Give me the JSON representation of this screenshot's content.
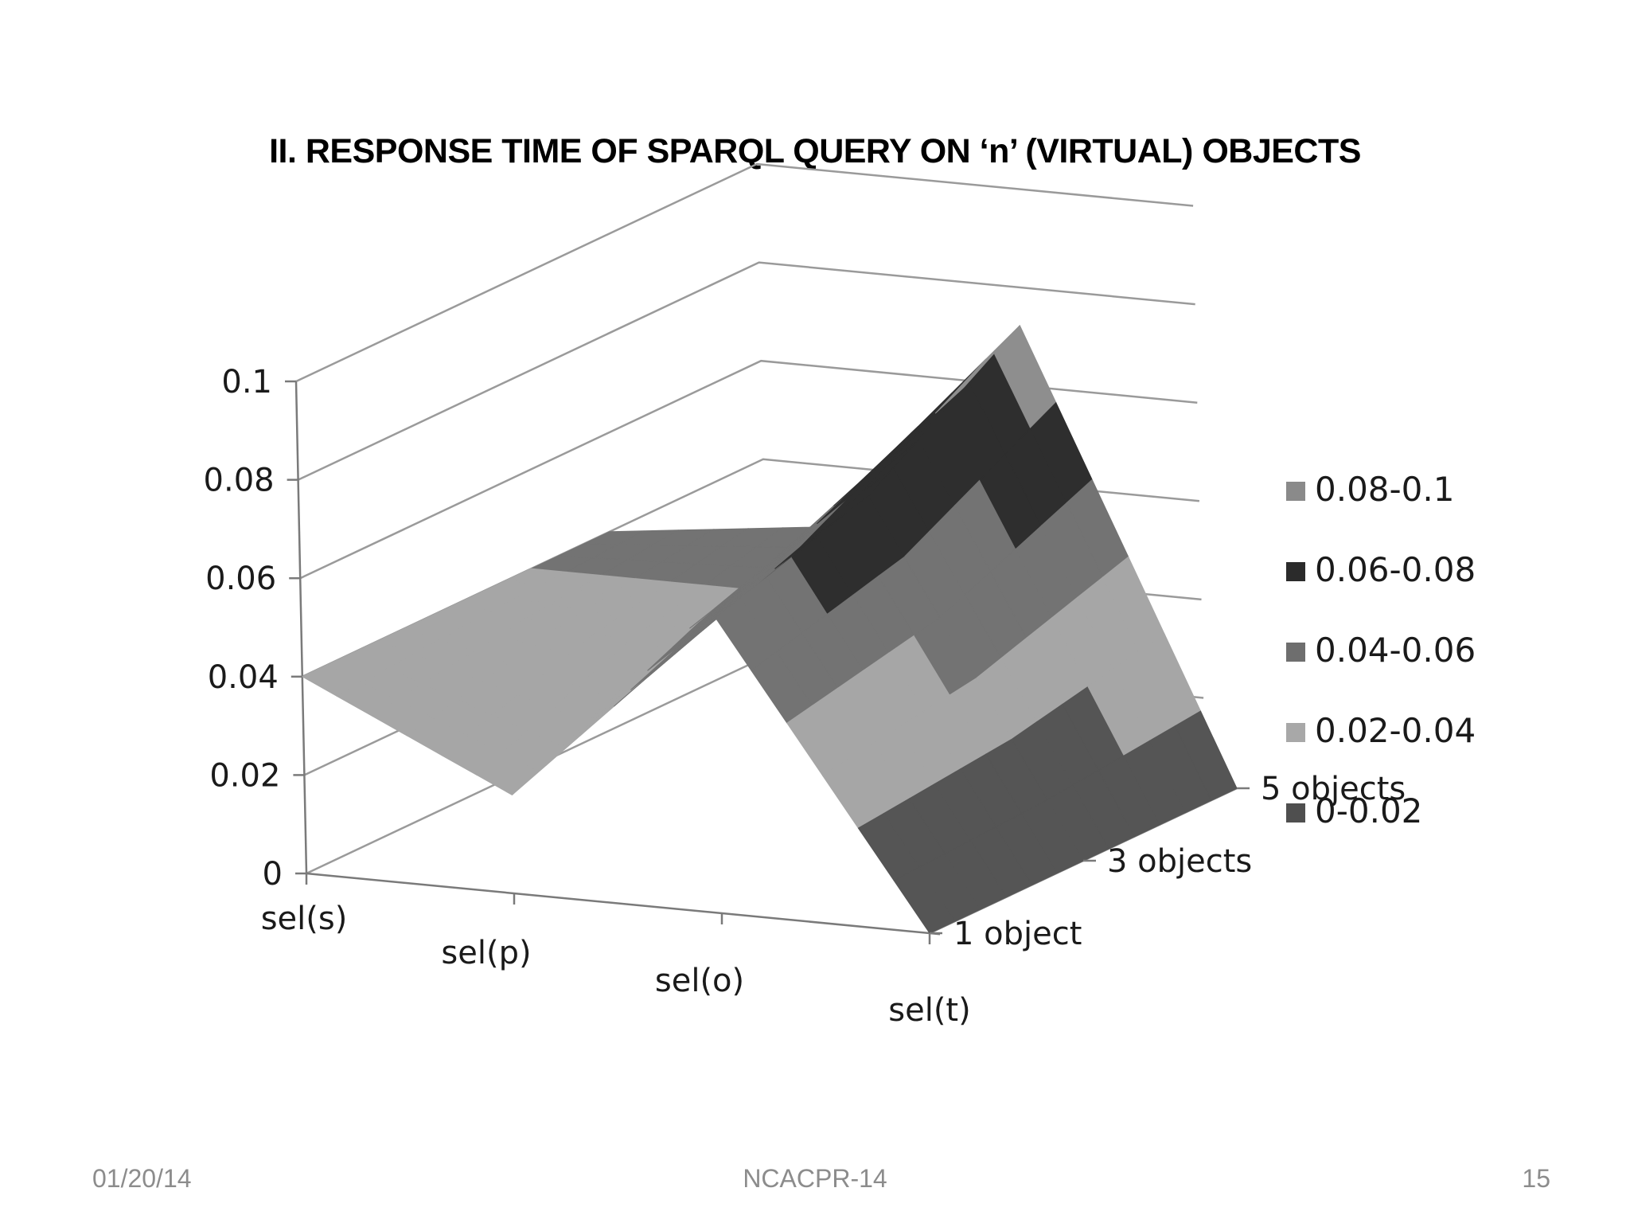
{
  "slide": {
    "title": "II. RESPONSE TIME OF SPARQL QUERY ON ‘n’ (VIRTUAL) OBJECTS",
    "footer_date": "01/20/14",
    "footer_center": "NCACPR-14",
    "footer_page": "15"
  },
  "chart_data": {
    "type": "surface",
    "title": "II. RESPONSE TIME OF SPARQL QUERY ON ‘n’ (VIRTUAL) OBJECTS",
    "categories": [
      "sel(s)",
      "sel(p)",
      "sel(o)",
      "sel(t)"
    ],
    "series": [
      {
        "name": "1 object",
        "values": [
          0.04,
          0.02,
          0.06,
          0.0
        ]
      },
      {
        "name": "3 objects",
        "values": [
          0.04,
          0.035,
          0.07,
          0.0
        ]
      },
      {
        "name": "5 objects",
        "values": [
          0.04,
          0.045,
          0.09,
          0.0
        ]
      }
    ],
    "yticks": [
      "0",
      "0.02",
      "0.04",
      "0.06",
      "0.08",
      "0.1"
    ],
    "ylim": [
      0,
      0.1
    ],
    "legend": {
      "position": "right",
      "entries": [
        {
          "label": "0.08-0.1",
          "color": "#8a8a8a"
        },
        {
          "label": "0.06-0.08",
          "color": "#2b2b2b"
        },
        {
          "label": "0.04-0.06",
          "color": "#6e6e6e"
        },
        {
          "label": "0.02-0.04",
          "color": "#a8a8a8"
        },
        {
          "label": "0-0.02",
          "color": "#4f4f4f"
        }
      ]
    },
    "band_colors": [
      "#555555",
      "#a6a6a6",
      "#737373",
      "#2e2e2e",
      "#8e8e8e"
    ],
    "grid": true
  }
}
